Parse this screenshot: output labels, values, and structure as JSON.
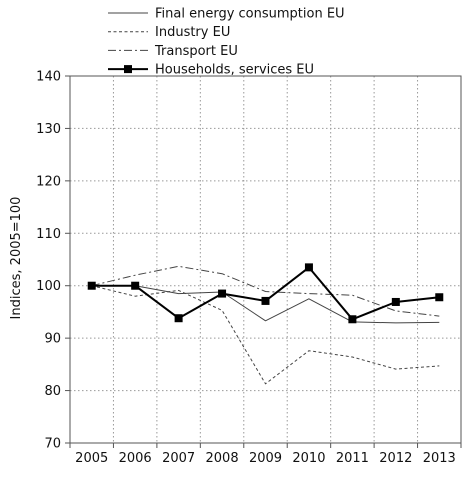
{
  "chart_data": {
    "type": "line",
    "title": "",
    "xlabel": "",
    "ylabel": "Indices, 2005=100",
    "ylim": [
      70,
      140
    ],
    "yticks": [
      70,
      80,
      90,
      100,
      110,
      120,
      130,
      140
    ],
    "grid": true,
    "legend_position": "top",
    "categories": [
      "2005",
      "2006",
      "2007",
      "2008",
      "2009",
      "2010",
      "2011",
      "2012",
      "2013"
    ],
    "series": [
      {
        "name": "Final energy consumption EU",
        "style": "solid-thin",
        "color": "#444444",
        "values": [
          100,
          100,
          98.5,
          98.8,
          93.3,
          97.5,
          93.1,
          92.9,
          93.0
        ]
      },
      {
        "name": "Industry EU",
        "style": "dotted",
        "color": "#444444",
        "values": [
          100,
          98.0,
          99.1,
          95.3,
          81.3,
          87.6,
          86.4,
          84.1,
          84.7
        ]
      },
      {
        "name": "Transport EU",
        "style": "dash-dot",
        "color": "#444444",
        "values": [
          100,
          102.0,
          103.7,
          102.3,
          98.9,
          98.5,
          98.2,
          95.2,
          94.2
        ]
      },
      {
        "name": "Households, services EU",
        "style": "thick-square-markers",
        "color": "#000000",
        "values": [
          100,
          100,
          93.8,
          98.5,
          97.1,
          103.5,
          93.6,
          96.9,
          97.8
        ]
      }
    ]
  }
}
